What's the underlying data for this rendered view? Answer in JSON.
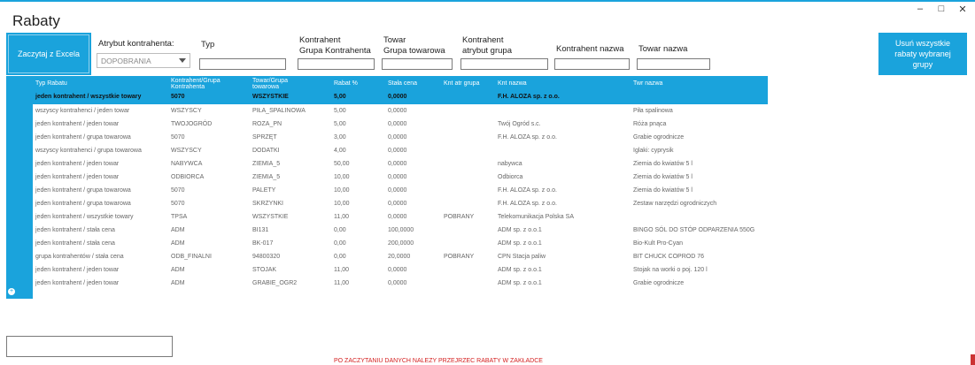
{
  "window": {
    "title": "Rabaty",
    "controls": {
      "minimize": "–",
      "maximize": "□",
      "close": "✕"
    }
  },
  "buttons": {
    "export_excel": "Zaczytaj z Excela",
    "remove_all": "Usuń wszystkie rabaty wybranej grupy"
  },
  "filters": {
    "atrybut_label": "Atrybut kontrahenta:",
    "atrybut_value": "DOPOBRANIA",
    "typ_label": "Typ",
    "kontrahent_label_1": "Kontrahent",
    "kontrahent_label_2": "Grupa Kontrahenta",
    "towar_label_1": "Towar",
    "towar_label_2": "Grupa towarowa",
    "kontr_atr_label_1": "Kontrahent",
    "kontr_atr_label_2": "atrybut grupa",
    "kontr_nazwa_label": "Kontrahent nazwa",
    "towar_nazwa_label": "Towar nazwa"
  },
  "grid": {
    "headers": {
      "typ": "Typ Rabatu",
      "kontrahent_1": "Kontrahent/Grupa",
      "kontrahent_2": "Kontrahenta",
      "towar_1": "Towar/Grupa",
      "towar_2": "towarowa",
      "rabat": "Rabat %",
      "stala": "Stała cena",
      "knt_atr": "Knt atr grupa",
      "knt_nazwa": "Knt nazwa",
      "twr_nazwa": "Twr nazwa"
    },
    "rows": [
      [
        "jeden kontrahent / wszystkie towary",
        "5070",
        "WSZYSTKIE",
        "5,00",
        "0,0000",
        "",
        "F.H. ALOZA sp. z o.o.",
        ""
      ],
      [
        "wszyscy kontrahenci / jeden towar",
        "WSZYSCY",
        "PIŁA_SPALINOWA",
        "5,00",
        "0,0000",
        "",
        "",
        "Piła spalinowa"
      ],
      [
        "jeden kontrahent / jeden towar",
        "TWOJOGRÓD",
        "ROZA_PN",
        "5,00",
        "0,0000",
        "",
        "Twój Ogród s.c.",
        "Róża pnąca"
      ],
      [
        "jeden kontrahent / grupa towarowa",
        "5070",
        "SPRZĘT",
        "3,00",
        "0,0000",
        "",
        "F.H. ALOZA sp. z o.o.",
        "Grabie ogrodnicze"
      ],
      [
        "wszyscy kontrahenci / grupa towarowa",
        "WSZYSCY",
        "DODATKI",
        "4,00",
        "0,0000",
        "",
        "",
        "Iglaki: cyprysik"
      ],
      [
        "jeden kontrahent / jeden towar",
        "NABYWCA",
        "ZIEMIA_5",
        "50,00",
        "0,0000",
        "",
        "nabywca",
        "Ziemia do kwiatów 5 l"
      ],
      [
        "jeden kontrahent / jeden towar",
        "ODBIORCA",
        "ZIEMIA_5",
        "10,00",
        "0,0000",
        "",
        "Odbiorca",
        "Ziemia do kwiatów 5 l"
      ],
      [
        "jeden kontrahent / grupa towarowa",
        "5070",
        "PALETY",
        "10,00",
        "0,0000",
        "",
        "F.H. ALOZA sp. z o.o.",
        "Ziemia do kwiatów 5 l"
      ],
      [
        "jeden kontrahent / grupa towarowa",
        "5070",
        "SKRZYNKI",
        "10,00",
        "0,0000",
        "",
        "F.H. ALOZA sp. z o.o.",
        "Zestaw narzędzi ogrodniczych"
      ],
      [
        "jeden kontrahent / wszystkie towary",
        "TPSA",
        "WSZYSTKIE",
        "11,00",
        "0,0000",
        "POBRANY",
        "Telekomunikacja Polska SA",
        ""
      ],
      [
        "jeden kontrahent / stała cena",
        "ADM",
        "BI131",
        "0,00",
        "100,0000",
        "",
        "ADM sp. z o.o.1",
        "BINGO SÓL DO STÓP ODPARZENIA 550G"
      ],
      [
        "jeden kontrahent / stała cena",
        "ADM",
        "BK-017",
        "0,00",
        "200,0000",
        "",
        "ADM sp. z o.o.1",
        "Bio-Kult Pro-Cyan"
      ],
      [
        "grupa kontrahentów / stała cena",
        "ODB_FINALNI",
        "94800320",
        "0,00",
        "20,0000",
        "POBRANY",
        "CPN Stacja paliw",
        "BIT CHUCK COPROD 76"
      ],
      [
        "jeden kontrahent / jeden towar",
        "ADM",
        "STOJAK",
        "11,00",
        "0,0000",
        "",
        "ADM sp. z o.o.1",
        "Stojak na worki o poj. 120 l"
      ],
      [
        "jeden kontrahent / jeden towar",
        "ADM",
        "GRABIE_OGR2",
        "11,00",
        "0,0000",
        "",
        "ADM sp. z o.o.1",
        "Grabie ogrodnicze"
      ]
    ]
  },
  "footer": {
    "status_text": "PO ZACZYTANIU DANYCH NALEŻY PRZEJRZEĆ RABATY W ZAKŁADCE"
  }
}
